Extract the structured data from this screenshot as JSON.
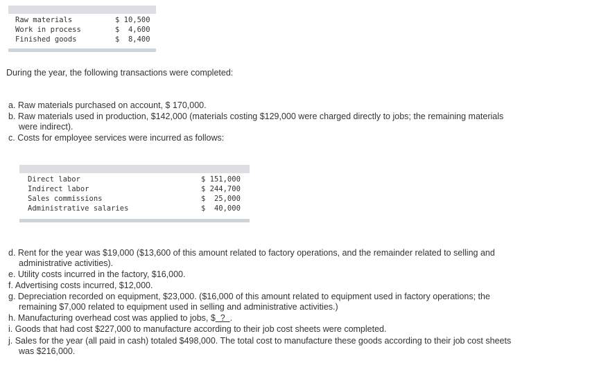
{
  "inventory_table": {
    "rows": [
      {
        "label": "Raw materials",
        "value": "$ 10,500"
      },
      {
        "label": "Work in process",
        "value": "$  4,600"
      },
      {
        "label": "Finished goods",
        "value": "$  8,400"
      }
    ]
  },
  "intro": "During the year, the following transactions were completed:",
  "items_part1": {
    "a": "a. Raw materials purchased on account, $ 170,000.",
    "b_line1": "b. Raw materials used in production, $142,000 (materials costing $129,000 were charged directly to jobs; the remaining materials",
    "b_line2": "were indirect).",
    "c": "c. Costs for employee services were incurred as follows:"
  },
  "labor_table": {
    "rows": [
      {
        "label": "Direct labor",
        "value": "$ 151,000"
      },
      {
        "label": "Indirect labor",
        "value": "$ 244,700"
      },
      {
        "label": "Sales commissions",
        "value": "$  25,000"
      },
      {
        "label": "Administrative salaries",
        "value": "$  40,000"
      }
    ]
  },
  "items_part2": {
    "d_line1": "d. Rent for the year was $19,000 ($13,600 of this amount related to factory operations, and the remainder related to selling and",
    "d_line2": "administrative activities).",
    "e": "e. Utility costs incurred in the factory, $16,000.",
    "f": "f. Advertising costs incurred, $12,000.",
    "g_line1": "g. Depreciation recorded on equipment, $23,000. ($16,000 of this amount related to equipment used in factory operations; the",
    "g_line2": "remaining $7,000 related to equipment used in selling and administrative activities.)",
    "h_prefix": "h. Manufacturing overhead cost was applied to jobs, $",
    "h_blank": "  ?  ",
    "h_suffix": ".",
    "i": "i. Goods that had cost $227,000 to manufacture according to their job cost sheets were completed.",
    "j_line1": "j. Sales for the year (all paid in cash) totaled $498,000. The total cost to manufacture these goods according to their job cost sheets",
    "j_line2": "was $216,000."
  }
}
